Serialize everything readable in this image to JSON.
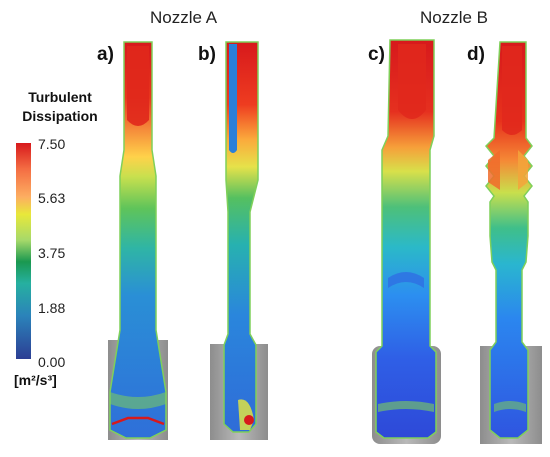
{
  "titles": {
    "nozzle_a": "Nozzle A",
    "nozzle_b": "Nozzle B"
  },
  "panels": [
    "a)",
    "b)",
    "c)",
    "d)"
  ],
  "legend": {
    "title_line1": "Turbulent",
    "title_line2": "Dissipation",
    "ticks": [
      "7.50",
      "5.63",
      "3.75",
      "1.88",
      "0.00"
    ],
    "units_html": "[m²/s³]",
    "min": 0.0,
    "max": 7.5,
    "colors": [
      "#d7191c",
      "#f46d43",
      "#fdae61",
      "#e8e83a",
      "#a6d96a",
      "#1a9850",
      "#26b0a0",
      "#2b83ba",
      "#2c3e94"
    ]
  }
}
